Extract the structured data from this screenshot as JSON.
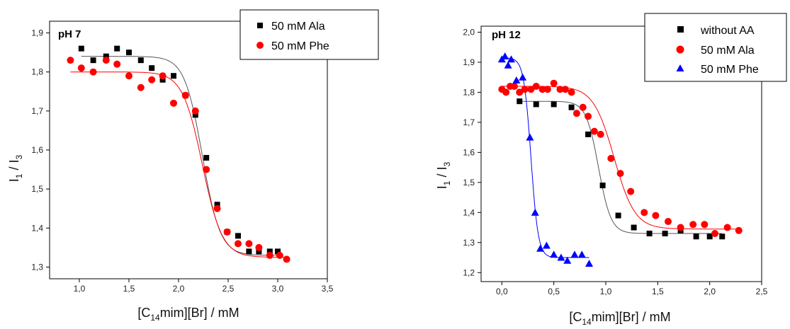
{
  "chart_data": [
    {
      "type": "scatter",
      "title": "pH 7",
      "xlabel": {
        "pre": "[C",
        "sub": "14",
        "post": "mim][Br] / mM"
      },
      "ylabel": {
        "pre": "I",
        "sub1": "1",
        "mid": " / I",
        "sub2": "3"
      },
      "xlim": [
        0.7,
        3.5
      ],
      "ylim": [
        1.27,
        1.93
      ],
      "xticks": [
        1.0,
        1.5,
        2.0,
        2.5,
        3.0,
        3.5
      ],
      "xtick_labels": [
        "1,0",
        "1,5",
        "2,0",
        "2,5",
        "3,0",
        "3,5"
      ],
      "yticks": [
        1.3,
        1.4,
        1.5,
        1.6,
        1.7,
        1.8,
        1.9
      ],
      "ytick_labels": [
        "1,3",
        "1,4",
        "1,5",
        "1,6",
        "1,7",
        "1,8",
        "1,9"
      ],
      "legend": "top-right",
      "grid": false,
      "series": [
        {
          "name": "50 mM Ala",
          "marker": "square",
          "color": "#000000",
          "fit_color": "#555555",
          "fit": {
            "top": 1.84,
            "bottom": 1.33,
            "x0": 2.24,
            "dx": 0.09
          },
          "x": [
            1.02,
            1.14,
            1.27,
            1.38,
            1.5,
            1.62,
            1.73,
            1.84,
            1.95,
            2.07,
            2.17,
            2.28,
            2.39,
            2.49,
            2.6,
            2.71,
            2.81,
            2.92,
            3.0
          ],
          "y": [
            1.86,
            1.83,
            1.84,
            1.86,
            1.85,
            1.83,
            1.81,
            1.78,
            1.79,
            1.74,
            1.69,
            1.58,
            1.46,
            1.39,
            1.38,
            1.34,
            1.34,
            1.34,
            1.34
          ]
        },
        {
          "name": "50 mM Phe",
          "marker": "circle",
          "color": "#ff0000",
          "fit_color": "#ff0000",
          "fit": {
            "top": 1.8,
            "bottom": 1.325,
            "x0": 2.24,
            "dx": 0.1
          },
          "x": [
            0.91,
            1.02,
            1.14,
            1.27,
            1.38,
            1.5,
            1.62,
            1.73,
            1.84,
            1.95,
            2.07,
            2.17,
            2.28,
            2.39,
            2.49,
            2.6,
            2.71,
            2.81,
            2.92,
            3.02,
            3.09
          ],
          "y": [
            1.83,
            1.81,
            1.8,
            1.83,
            1.82,
            1.79,
            1.76,
            1.78,
            1.79,
            1.72,
            1.74,
            1.7,
            1.55,
            1.45,
            1.39,
            1.36,
            1.36,
            1.35,
            1.33,
            1.33,
            1.32
          ]
        }
      ]
    },
    {
      "type": "scatter",
      "title": "pH 12",
      "xlabel": {
        "pre": "[C",
        "sub": "14",
        "post": "mim][Br] / mM"
      },
      "ylabel": {
        "pre": "I",
        "sub1": "1",
        "mid": " / I",
        "sub2": "3"
      },
      "xlim": [
        -0.2,
        2.5
      ],
      "ylim": [
        1.17,
        2.02
      ],
      "xticks": [
        0.0,
        0.5,
        1.0,
        1.5,
        2.0,
        2.5
      ],
      "xtick_labels": [
        "0,0",
        "0,5",
        "1,0",
        "1,5",
        "2,0",
        "2,5"
      ],
      "yticks": [
        1.2,
        1.3,
        1.4,
        1.5,
        1.6,
        1.7,
        1.8,
        1.9,
        2.0
      ],
      "ytick_labels": [
        "1,2",
        "1,3",
        "1,4",
        "1,5",
        "1,6",
        "1,7",
        "1,8",
        "1,9",
        "2,0"
      ],
      "legend": "top-right",
      "grid": false,
      "series": [
        {
          "name": "without AA",
          "marker": "square",
          "color": "#000000",
          "fit_color": "#555555",
          "fit": {
            "top": 1.77,
            "bottom": 1.33,
            "x0": 0.93,
            "dx": 0.06
          },
          "x": [
            0.17,
            0.33,
            0.5,
            0.67,
            0.83,
            0.97,
            1.12,
            1.27,
            1.42,
            1.57,
            1.72,
            1.87,
            2.0,
            2.12
          ],
          "y": [
            1.77,
            1.76,
            1.76,
            1.75,
            1.66,
            1.49,
            1.39,
            1.35,
            1.33,
            1.33,
            1.34,
            1.32,
            1.32,
            1.32
          ]
        },
        {
          "name": "50 mM Ala",
          "marker": "circle",
          "color": "#ff0000",
          "fit_color": "#ff0000",
          "fit": {
            "top": 1.82,
            "bottom": 1.345,
            "x0": 1.08,
            "dx": 0.1
          },
          "x": [
            0.0,
            0.04,
            0.08,
            0.12,
            0.17,
            0.22,
            0.28,
            0.33,
            0.39,
            0.44,
            0.5,
            0.56,
            0.61,
            0.67,
            0.72,
            0.78,
            0.83,
            0.89,
            0.95,
            1.05,
            1.14,
            1.24,
            1.37,
            1.48,
            1.6,
            1.72,
            1.84,
            1.95,
            2.05,
            2.17,
            2.28
          ],
          "y": [
            1.81,
            1.8,
            1.82,
            1.82,
            1.8,
            1.81,
            1.81,
            1.82,
            1.81,
            1.81,
            1.83,
            1.81,
            1.81,
            1.8,
            1.73,
            1.75,
            1.72,
            1.67,
            1.66,
            1.58,
            1.53,
            1.47,
            1.4,
            1.39,
            1.37,
            1.35,
            1.36,
            1.36,
            1.33,
            1.35,
            1.34
          ]
        },
        {
          "name": "50 mM Phe",
          "marker": "triangle",
          "color": "#0000ff",
          "fit_color": "#0000ff",
          "fit": {
            "top": 1.915,
            "bottom": 1.25,
            "x0": 0.28,
            "dx": 0.035
          },
          "x": [
            0.0,
            0.03,
            0.06,
            0.09,
            0.14,
            0.2,
            0.27,
            0.32,
            0.37,
            0.43,
            0.5,
            0.57,
            0.63,
            0.7,
            0.77,
            0.84
          ],
          "y": [
            1.91,
            1.92,
            1.89,
            1.91,
            1.84,
            1.85,
            1.65,
            1.4,
            1.28,
            1.29,
            1.26,
            1.25,
            1.24,
            1.26,
            1.26,
            1.23
          ]
        }
      ]
    }
  ]
}
